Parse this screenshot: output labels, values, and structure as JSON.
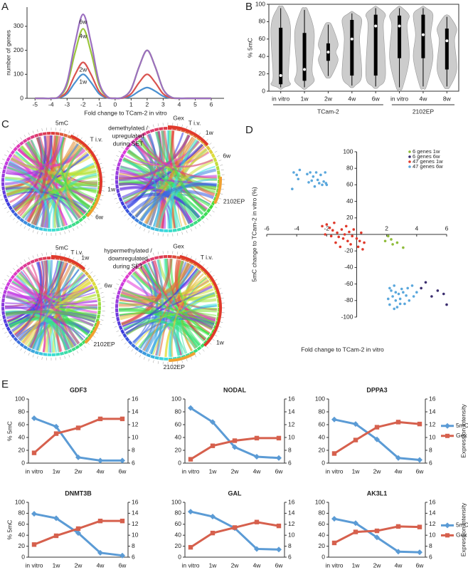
{
  "chart_data": [
    {
      "panel": "A",
      "type": "line",
      "smooth": true,
      "legend": "inline",
      "xlabel": "Fold change to TCam-2 in vitro",
      "ylabel": "number of genes",
      "x": [
        -5,
        -4.5,
        -4,
        -3.5,
        -3,
        -2.5,
        -2,
        -1.5,
        -1,
        -0.5,
        0,
        0.5,
        1,
        1.5,
        2,
        2.5,
        3,
        3.5,
        4,
        4.5,
        5,
        5.5,
        6
      ],
      "xlim": [
        -5.5,
        6.8
      ],
      "xticks": [
        -5,
        -4,
        -3,
        -2,
        -1,
        0,
        1,
        2,
        3,
        4,
        5,
        6
      ],
      "ylim": [
        0,
        380
      ],
      "yticks": [
        0,
        100,
        200,
        300
      ],
      "series": [
        {
          "name": "1w",
          "color": "#4a90d0",
          "values": [
            0,
            0,
            0,
            2,
            19,
            66,
            100,
            66,
            19,
            2,
            0,
            1,
            9,
            30,
            45,
            30,
            9,
            1,
            0,
            0,
            0,
            0,
            0
          ]
        },
        {
          "name": "2w",
          "color": "#d9534f",
          "values": [
            0,
            0,
            0,
            4,
            29,
            99,
            150,
            99,
            29,
            4,
            0,
            2,
            19,
            66,
            100,
            66,
            19,
            2,
            0,
            0,
            0,
            0,
            0
          ]
        },
        {
          "name": "4w",
          "color": "#9bc53d",
          "values": [
            0,
            0,
            0,
            7,
            55,
            191,
            290,
            191,
            55,
            7,
            0,
            5,
            38,
            132,
            200,
            132,
            38,
            5,
            0,
            0,
            0,
            0,
            0
          ]
        },
        {
          "name": "6w",
          "color": "#9b6fc0",
          "values": [
            0,
            0,
            0,
            8,
            67,
            231,
            350,
            231,
            67,
            8,
            0,
            5,
            38,
            132,
            200,
            132,
            38,
            5,
            0,
            0,
            0,
            0,
            0
          ]
        }
      ]
    },
    {
      "panel": "B",
      "type": "violin",
      "ylabel": "% 5mC",
      "categories": [
        "in vitro",
        "1w",
        "2w",
        "4w",
        "6w",
        "in vitro",
        "4w",
        "8w"
      ],
      "groups": [
        {
          "label": "TCam-2",
          "size": 5
        },
        {
          "label": "2102EP",
          "size": 3
        }
      ],
      "ylim": [
        0,
        100
      ],
      "yticks": [
        0,
        20,
        40,
        60,
        80,
        100
      ],
      "color": "#cccccc",
      "min": [
        2,
        2,
        15,
        4,
        3,
        2,
        3,
        3
      ],
      "q1": [
        8,
        12,
        35,
        18,
        18,
        38,
        38,
        25
      ],
      "median": [
        18,
        25,
        45,
        60,
        75,
        75,
        65,
        58
      ],
      "q3": [
        73,
        67,
        55,
        82,
        88,
        87,
        88,
        72
      ],
      "max": [
        98,
        96,
        79,
        92,
        98,
        98,
        98,
        88
      ]
    },
    {
      "panel": "C",
      "type": "chord",
      "diagrams": [
        {
          "title": "5mC",
          "labels": [
            "T i.v.",
            "1w",
            "6w"
          ]
        },
        {
          "title": "Gex",
          "labels": [
            "T i.v.",
            "1w",
            "6w",
            "2102EP"
          ]
        },
        {
          "title": "5mC",
          "labels": [
            "T i.v.",
            "1w",
            "6w",
            "2102EP"
          ]
        },
        {
          "title": "Gex",
          "labels": [
            "T i.v.",
            "1w",
            "2102EP"
          ]
        }
      ],
      "annotations": [
        [
          "demethylated /",
          "upregulated",
          "during SET"
        ],
        [
          "hypermethylated /",
          "downregulated",
          "during SET"
        ]
      ]
    },
    {
      "panel": "D",
      "type": "scatter",
      "legend": "upper right",
      "xlabel": "Fold change to TCam-2 in vitro",
      "ylabel": "5mC change to TCam-2 in vitro (%)",
      "xlim": [
        -6,
        6
      ],
      "xticks": [
        -6,
        -4,
        -2,
        2,
        4,
        6
      ],
      "ylim": [
        -100,
        100
      ],
      "yticks": [
        100,
        80,
        60,
        40,
        20,
        -20,
        -40,
        -60,
        -80,
        -100
      ],
      "series": [
        {
          "name": "6 genes 1w",
          "color": "#8fbc3a",
          "x": [
            1.9,
            2.1,
            2.4,
            2.7,
            3.1,
            2.3
          ],
          "values": [
            -8,
            -2,
            -12,
            -10,
            -16,
            -6
          ]
        },
        {
          "name": "6 genes 6w",
          "color": "#3a2d6e",
          "x": [
            4.3,
            4.6,
            5,
            5.4,
            5.8,
            6
          ],
          "values": [
            -65,
            -58,
            -75,
            -68,
            -72,
            -85
          ]
        },
        {
          "name": "47 genes 1w",
          "color": "#e0392b",
          "x": [
            -2.3,
            -2,
            -1.8,
            -1.6,
            -1.5,
            -1.3,
            -1.2,
            -1,
            -0.9,
            -0.8,
            -0.6,
            -0.5,
            -0.4,
            -0.3,
            -0.2,
            0,
            0.1,
            0.2,
            0.3,
            0.5,
            -1.4,
            -1.7,
            -2.1,
            -0.7,
            0.4,
            -1.1
          ],
          "values": [
            10,
            12,
            8,
            5,
            14,
            2,
            -3,
            6,
            -5,
            0,
            -8,
            3,
            -12,
            -2,
            6,
            -5,
            -15,
            -8,
            2,
            -10,
            -10,
            -2,
            0,
            10,
            -18,
            -15
          ]
        },
        {
          "name": "47 genes 6w",
          "color": "#5aa7dc",
          "x": [
            -4.2,
            -4,
            -3.8,
            -3.9,
            -4.3,
            -3.3,
            -3.1,
            -2.9,
            -3,
            -2.7,
            -2.6,
            -2.5,
            -2.3,
            -2.2,
            -2.1,
            -2,
            -2.4,
            -2.8,
            -3.2,
            -2.05,
            2.2,
            2.3,
            2.5,
            2.6,
            2.8,
            2.4,
            2.6,
            2.9,
            3,
            3.1,
            3.3,
            3.4,
            3.5,
            3.2,
            2.7,
            2.2,
            2.5,
            3.8,
            4,
            3.7,
            2.1,
            2.9
          ],
          "values": [
            75,
            72,
            78,
            67,
            55,
            73,
            75,
            70,
            65,
            75,
            66,
            62,
            60,
            64,
            75,
            60,
            72,
            58,
            63,
            62,
            -65,
            -68,
            -62,
            -70,
            -72,
            -75,
            -80,
            -78,
            -66,
            -70,
            -74,
            -65,
            -80,
            -84,
            -88,
            -85,
            -90,
            -75,
            -70,
            -62,
            -78,
            -84
          ]
        }
      ]
    },
    {
      "panel": "E",
      "type": "line",
      "title": "GDF3",
      "ylabel": "% 5mC",
      "categories": [
        "in vitro",
        "1w",
        "2w",
        "4w",
        "6w"
      ],
      "ylim": [
        0,
        100
      ],
      "yticks": [
        0,
        20,
        40,
        60,
        80,
        100
      ],
      "y2lim": [
        6,
        16
      ],
      "y2ticks": [
        6,
        8,
        10,
        12,
        14,
        16
      ],
      "series": [
        {
          "name": "5mC",
          "color": "#5b9bd5",
          "marker": "diamond",
          "values": [
            70,
            57,
            9,
            4,
            4
          ]
        },
        {
          "name": "Gex",
          "color": "#d6604d",
          "marker": "square",
          "axis": "y2",
          "values": [
            7.6,
            10.6,
            11.5,
            12.9,
            12.9
          ]
        }
      ]
    },
    {
      "type": "line",
      "title": "NODAL",
      "categories": [
        "in vitro",
        "1w",
        "2w",
        "4w",
        "6w"
      ],
      "ylim": [
        0,
        100
      ],
      "yticks": [
        0,
        20,
        40,
        60,
        80,
        100
      ],
      "y2lim": [
        6,
        16
      ],
      "y2ticks": [
        6,
        8,
        10,
        12,
        14,
        16
      ],
      "series": [
        {
          "name": "5mC",
          "color": "#5b9bd5",
          "marker": "diamond",
          "values": [
            86,
            64,
            25,
            10,
            8
          ]
        },
        {
          "name": "Gex",
          "color": "#d6604d",
          "marker": "square",
          "axis": "y2",
          "values": [
            6.6,
            8.7,
            9.5,
            9.9,
            9.9
          ]
        }
      ]
    },
    {
      "type": "line",
      "title": "DPPA3",
      "y2label": "Expression intensity",
      "legend": "right",
      "categories": [
        "in vitro",
        "1w",
        "2w",
        "4w",
        "6w"
      ],
      "ylim": [
        0,
        100
      ],
      "yticks": [
        0,
        20,
        40,
        60,
        80,
        100
      ],
      "y2lim": [
        6,
        16
      ],
      "y2ticks": [
        6,
        8,
        10,
        12,
        14,
        16
      ],
      "series": [
        {
          "name": "5mC",
          "color": "#5b9bd5",
          "marker": "diamond",
          "values": [
            68,
            61,
            37,
            8,
            5
          ]
        },
        {
          "name": "Gex",
          "color": "#d6604d",
          "marker": "square",
          "axis": "y2",
          "values": [
            7.5,
            9.6,
            11.6,
            12.4,
            12.1
          ]
        }
      ]
    },
    {
      "type": "line",
      "title": "DNMT3B",
      "ylabel": "% 5mC",
      "categories": [
        "in vitro",
        "1w",
        "2w",
        "4w",
        "6w"
      ],
      "ylim": [
        0,
        100
      ],
      "yticks": [
        0,
        20,
        40,
        60,
        80,
        100
      ],
      "y2lim": [
        6,
        16
      ],
      "y2ticks": [
        6,
        8,
        10,
        12,
        14,
        16
      ],
      "series": [
        {
          "name": "5mC",
          "color": "#5b9bd5",
          "marker": "diamond",
          "values": [
            79,
            71,
            44,
            8,
            3
          ]
        },
        {
          "name": "Gex",
          "color": "#d6604d",
          "marker": "square",
          "axis": "y2",
          "values": [
            8.3,
            9.9,
            11.2,
            12.6,
            12.6
          ]
        }
      ]
    },
    {
      "type": "line",
      "title": "GAL",
      "categories": [
        "in vitro",
        "1w",
        "2w",
        "4w",
        "6w"
      ],
      "ylim": [
        0,
        100
      ],
      "yticks": [
        0,
        20,
        40,
        60,
        80,
        100
      ],
      "y2lim": [
        6,
        16
      ],
      "y2ticks": [
        6,
        8,
        10,
        12,
        14,
        16
      ],
      "series": [
        {
          "name": "5mC",
          "color": "#5b9bd5",
          "marker": "diamond",
          "values": [
            83,
            74,
            53,
            15,
            14
          ]
        },
        {
          "name": "Gex",
          "color": "#d6604d",
          "marker": "square",
          "axis": "y2",
          "values": [
            7.8,
            10.4,
            11.4,
            12.4,
            11.7
          ]
        }
      ]
    },
    {
      "type": "line",
      "title": "AK3L1",
      "y2label": "Expression intensity",
      "legend": "right",
      "categories": [
        "in vitro",
        "1w",
        "2w",
        "4w",
        "6w"
      ],
      "ylim": [
        0,
        100
      ],
      "yticks": [
        0,
        20,
        40,
        60,
        80,
        100
      ],
      "y2lim": [
        6,
        16
      ],
      "y2ticks": [
        6,
        8,
        10,
        12,
        14,
        16
      ],
      "series": [
        {
          "name": "5mC",
          "color": "#5b9bd5",
          "marker": "diamond",
          "values": [
            70,
            62,
            36,
            10,
            9
          ]
        },
        {
          "name": "Gex",
          "color": "#d6604d",
          "marker": "square",
          "axis": "y2",
          "values": [
            8.6,
            10.6,
            10.8,
            11.6,
            11.5
          ]
        }
      ]
    }
  ]
}
